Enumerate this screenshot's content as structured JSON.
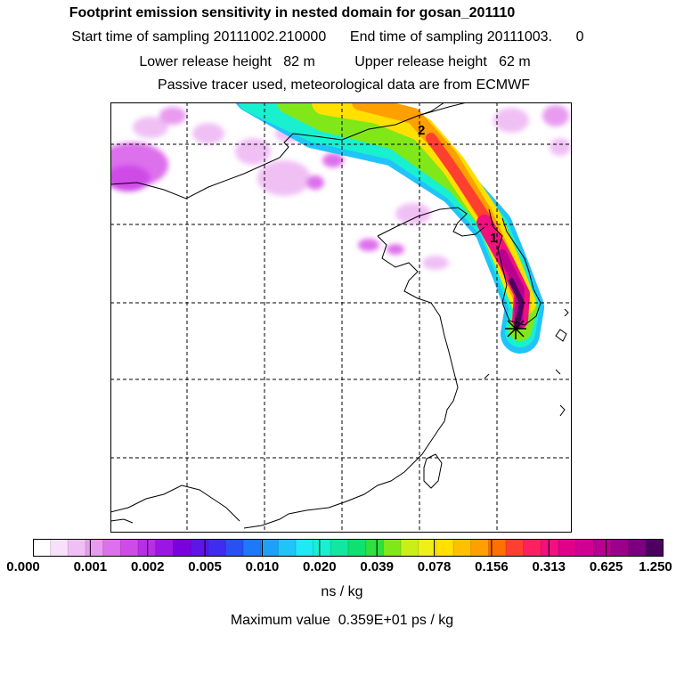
{
  "header": {
    "title": "Footprint emission sensitivity in nested domain for gosan_201110",
    "sampling_line": "Start time of sampling 20111002.210000      End time of sampling 20111003.      0",
    "release_line": "Lower release height   82 m          Upper release height   62 m",
    "tracer_line": "Passive tracer used, meteorological data are from ECMWF"
  },
  "map": {
    "label_1": "1",
    "label_2": "2",
    "receptor_icon": "star-marker-icon",
    "gridlines": "dashed"
  },
  "colorbar": {
    "ticks": [
      "0.000",
      "0.001",
      "0.002",
      "0.005",
      "0.010",
      "0.020",
      "0.039",
      "0.078",
      "0.156",
      "0.313",
      "0.625",
      "1.250"
    ],
    "colors": [
      "#ffffff",
      "#f8e0fa",
      "#f0c0f5",
      "#e89bf0",
      "#dd70ec",
      "#cf4be8",
      "#b82ee5",
      "#9b16e3",
      "#7a00e0",
      "#5f14e8",
      "#3f2cf0",
      "#2850f5",
      "#1e78f7",
      "#1fa0f8",
      "#20c4f8",
      "#20e8f6",
      "#18f0d0",
      "#10e8a0",
      "#10e070",
      "#30e040",
      "#80e818",
      "#c8f018",
      "#f0f018",
      "#ffe000",
      "#ffc000",
      "#ffa000",
      "#ff7000",
      "#ff4030",
      "#ff2060",
      "#f01080",
      "#e0008a",
      "#d00090",
      "#b8008f",
      "#9c008a",
      "#7a0080",
      "#4c0060"
    ]
  },
  "units": "ns / kg",
  "max_value": "Maximum value  0.359E+01 ps / kg"
}
